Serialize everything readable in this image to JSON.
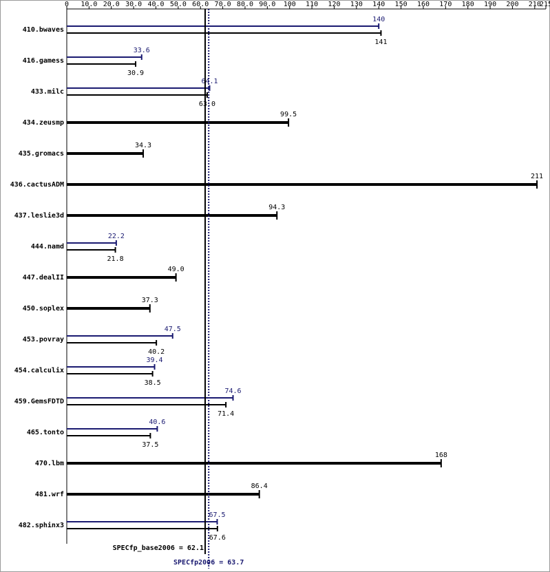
{
  "chart_data": {
    "type": "hbar",
    "categories": [
      "410.bwaves",
      "416.gamess",
      "433.milc",
      "434.zeusmp",
      "435.gromacs",
      "436.cactusADM",
      "437.leslie3d",
      "444.namd",
      "447.dealII",
      "450.soplex",
      "453.povray",
      "454.calculix",
      "459.GemsFDTD",
      "465.tonto",
      "470.lbm",
      "481.wrf",
      "482.sphinx3"
    ],
    "series": [
      {
        "color": "#000000",
        "values": [
          141,
          30.9,
          63.0,
          99.5,
          34.3,
          211,
          94.3,
          21.8,
          49.0,
          37.3,
          40.2,
          38.5,
          71.4,
          37.5,
          168,
          86.4,
          67.6
        ],
        "value_labels": [
          "141",
          "30.9",
          "63.0",
          "99.5",
          "34.3",
          "211",
          "94.3",
          "21.8",
          "49.0",
          "37.3",
          "40.2",
          "38.5",
          "71.4",
          "37.5",
          "168",
          "86.4",
          "67.6"
        ]
      },
      {
        "color": "#191970",
        "values": [
          140,
          33.6,
          64.1,
          null,
          null,
          null,
          null,
          22.2,
          null,
          null,
          47.5,
          39.4,
          74.6,
          40.6,
          null,
          null,
          67.5
        ],
        "value_labels": [
          "140",
          "33.6",
          "64.1",
          null,
          null,
          null,
          null,
          "22.2",
          null,
          null,
          "47.5",
          "39.4",
          "74.6",
          "40.6",
          null,
          null,
          "67.5"
        ]
      }
    ],
    "xlim": [
      0,
      215
    ],
    "xticks": [
      0,
      {
        "value": 10,
        "label": "10.0"
      },
      {
        "value": 20,
        "label": "20.0"
      },
      {
        "value": 30,
        "label": "30.0"
      },
      {
        "value": 40,
        "label": "40.0"
      },
      {
        "value": 50,
        "label": "50.0"
      },
      {
        "value": 60,
        "label": "60.0"
      },
      {
        "value": 70,
        "label": "70.0"
      },
      {
        "value": 80,
        "label": "80.0"
      },
      {
        "value": 90,
        "label": "90.0"
      },
      100,
      110,
      120,
      130,
      140,
      150,
      160,
      170,
      180,
      190,
      200,
      210,
      215
    ],
    "base_metric": {
      "value": 62.1,
      "label": "SPECfp_base2006 = 62.1"
    },
    "peak_metric": {
      "value": 63.7,
      "label": "SPECfp2006 = 63.7"
    }
  }
}
